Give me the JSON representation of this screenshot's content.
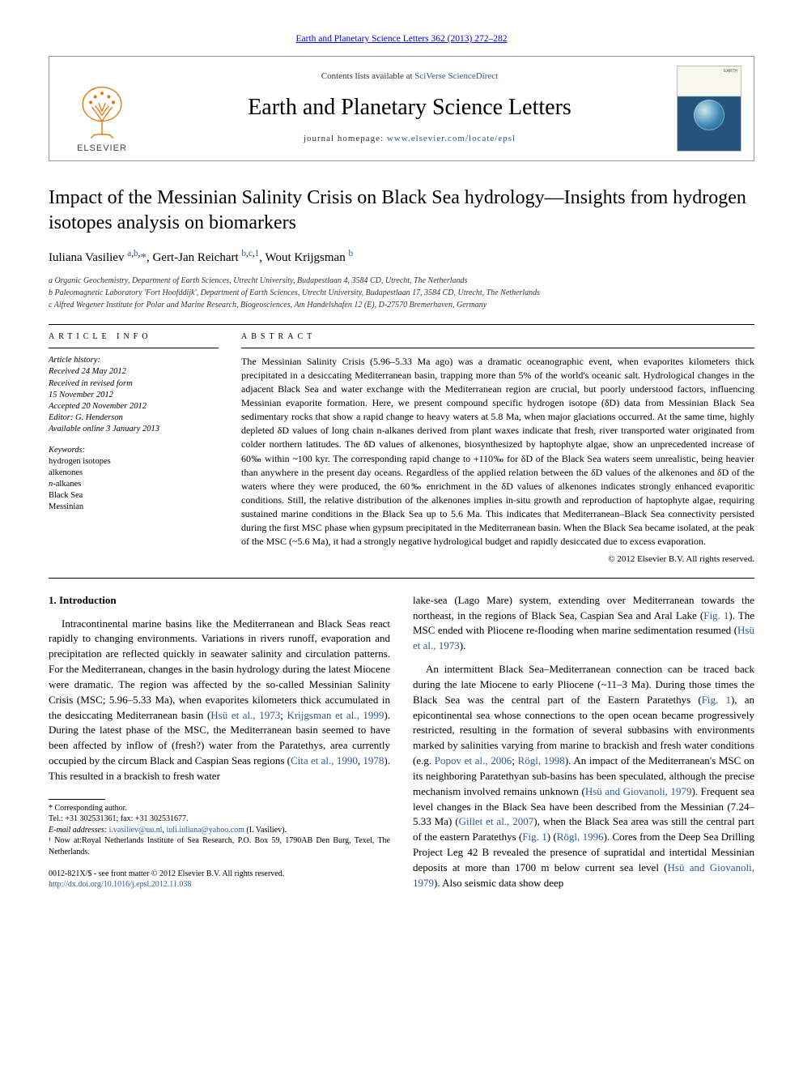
{
  "topLink": {
    "journal": "Earth and Planetary Science Letters",
    "cite": "362 (2013) 272–282"
  },
  "banner": {
    "contents_prefix": "Contents lists available at ",
    "contents_link": "SciVerse ScienceDirect",
    "journalName": "Earth and Planetary Science Letters",
    "homepage_prefix": "journal homepage: ",
    "homepage_link": "www.elsevier.com/locate/epsl",
    "publisher": "ELSEVIER",
    "coverLabel": "EARTH"
  },
  "article": {
    "title": "Impact of the Messinian Salinity Crisis on Black Sea hydrology—Insights from hydrogen isotopes analysis on biomarkers",
    "authors_html": "Iuliana Vasiliev <sup><a href='#'>a</a>,<a href='#'>b</a>,</sup><a href='#'>*</a>, Gert-Jan Reichart <sup><a href='#'>b</a>,<a href='#'>c</a>,<a href='#'>1</a></sup>, Wout Krijgsman <sup><a href='#'>b</a></sup>",
    "affiliations": [
      "a Organic Geochemistry, Department of Earth Sciences, Utrecht University, Budapestlaan 4, 3584 CD, Utrecht, The Netherlands",
      "b Paleomagnetic Laboratory 'Fort Hoofddijk', Department of Earth Sciences, Utrecht University, Budapestlaan 17, 3584 CD, Utrecht, The Netherlands",
      "c Alfred Wegener Institute for Polar and Marine Research, Biogeosciences, Am Handelshafen 12 (E), D-27570 Bremerhaven, Germany"
    ]
  },
  "info": {
    "header": "ARTICLE INFO",
    "historyLabel": "Article history:",
    "history": [
      "Received 24 May 2012",
      "Received in revised form",
      "15 November 2012",
      "Accepted 20 November 2012",
      "Editor: G. Henderson",
      "Available online 3 January 2013"
    ],
    "keywordsLabel": "Keywords:",
    "keywords": [
      "hydrogen isotopes",
      "alkenones",
      "n-alkanes",
      "Black Sea",
      "Messinian"
    ]
  },
  "abstract": {
    "header": "ABSTRACT",
    "text": "The Messinian Salinity Crisis (5.96–5.33 Ma ago) was a dramatic oceanographic event, when evaporites kilometers thick precipitated in a desiccating Mediterranean basin, trapping more than 5% of the world's oceanic salt. Hydrological changes in the adjacent Black Sea and water exchange with the Mediterranean region are crucial, but poorly understood factors, influencing Messinian evaporite formation. Here, we present compound specific hydrogen isotope (δD) data from Messinian Black Sea sedimentary rocks that show a rapid change to heavy waters at 5.8 Ma, when major glaciations occurred. At the same time, highly depleted δD values of long chain n-alkanes derived from plant waxes indicate that fresh, river transported water originated from colder northern latitudes. The δD values of alkenones, biosynthesized by haptophyte algae, show an unprecedented increase of 60‰ within ~100 kyr. The corresponding rapid change to +110‰ for δD of the Black Sea waters seem unrealistic, being heavier than anywhere in the present day oceans. Regardless of the applied relation between the δD values of the alkenones and δD of the waters where they were produced, the 60‰ enrichment in the δD values of alkenones indicates strongly enhanced evaporitic conditions. Still, the relative distribution of the alkenones implies in-situ growth and reproduction of haptophyte algae, requiring sustained marine conditions in the Black Sea up to 5.6 Ma. This indicates that Mediterranean–Black Sea connectivity persisted during the first MSC phase when gypsum precipitated in the Mediterranean basin. When the Black Sea became isolated, at the peak of the MSC (~5.6 Ma), it had a strongly negative hydrological budget and rapidly desiccated due to excess evaporation.",
    "copyright": "© 2012 Elsevier B.V. All rights reserved."
  },
  "intro": {
    "heading": "1. Introduction",
    "para1a": "Intracontinental marine basins like the Mediterranean and Black Seas react rapidly to changing environments. Variations in rivers runoff, evaporation and precipitation are reflected quickly in seawater salinity and circulation patterns. For the Mediterranean, changes in the basin hydrology during the latest Miocene were dramatic. The region was affected by the so-called Messinian Salinity Crisis (MSC; 5.96–5.33 Ma), when evaporites kilometers thick accumulated in the desiccating Mediterranean basin (",
    "ref1": "Hsü et al., 1973",
    "para1b": "; ",
    "ref2": "Krijgsman et al., 1999",
    "para1c": "). During the latest phase of the MSC, the Mediterranean basin seemed to have been affected by inflow of (fresh?) water from the Paratethys, area currently occupied by the circum Black and Caspian Seas regions (",
    "ref3": "Cita et al., 1990",
    "para1d": ", ",
    "ref4": "1978",
    "para1e": "). This resulted in a brackish to fresh water",
    "para2a": "lake-sea (Lago Mare) system, extending over Mediterranean towards the northeast, in the regions of Black Sea, Caspian Sea and Aral Lake (",
    "ref5": "Fig. 1",
    "para2b": "). The MSC ended with Pliocene re-flooding when marine sedimentation resumed (",
    "ref6": "Hsü et al., 1973",
    "para2c": ").",
    "para3a": "An intermittent Black Sea–Mediterranean connection can be traced back during the late Miocene to early Pliocene (~11–3 Ma). During those times the Black Sea was the central part of the Eastern Paratethys (",
    "ref7": "Fig. 1",
    "para3b": "), an epicontinental sea whose connections to the open ocean became progressively restricted, resulting in the formation of several subbasins with environments marked by salinities varying from marine to brackish and fresh water conditions (e.g. ",
    "ref8": "Popov et al., 2006",
    "para3c": "; ",
    "ref9": "Rögl, 1998",
    "para3d": "). An impact of the Mediterranean's MSC on its neighboring Paratethyan sub-basins has been speculated, although the precise mechanism involved remains unknown (",
    "ref10": "Hsü and Giovanoli, 1979",
    "para3e": "). Frequent sea level changes in the Black Sea have been described from the Messinian (7.24–5.33 Ma) (",
    "ref11": "Gillet et al., 2007",
    "para3f": "), when the Black Sea area was still the central part of the eastern Paratethys (",
    "ref12": "Fig. 1",
    "para3g": ") (",
    "ref13": "Rögl, 1996",
    "para3h": "). Cores from the Deep Sea Drilling Project Leg 42 B revealed the presence of supratidal and intertidal Messinian deposits at more than 1700 m below current sea level (",
    "ref14": "Hsü and Giovanoli, 1979",
    "para3i": "). Also seismic data show deep"
  },
  "footnotes": {
    "corrLabel": "* Corresponding author.",
    "tel": "Tel.: +31 302531361; fax: +31 302531677.",
    "emailLabel": "E-mail addresses:",
    "email1": "i.vasiliev@uu.nl",
    "emailSep": ", ",
    "email2": "iuli.iuliana@yahoo.com",
    "emailWho": " (I. Vasiliev).",
    "note1": "¹ Now at:Royal Netherlands Institute of Sea Research, P.O. Box 59, 1790AB Den Burg, Texel, The Netherlands."
  },
  "footer": {
    "issn": "0012-821X/$ - see front matter © 2012 Elsevier B.V. All rights reserved.",
    "doi": "http://dx.doi.org/10.1016/j.epsl.2012.11.038"
  },
  "colors": {
    "link": "#2a5aa0",
    "text": "#000000",
    "rule": "#000000",
    "bannerBorder": "#999999"
  },
  "typography": {
    "bodyFont": "Georgia, 'Times New Roman', serif",
    "titleFontSize": 24,
    "journalNameFontSize": 28,
    "abstractFontSize": 12,
    "bodyFontSize": 13,
    "smallFontSize": 10
  },
  "layout": {
    "pageWidth": 992,
    "pageHeight": 1323,
    "leftInfoColWidth": 210,
    "bodyColGap": 28
  }
}
